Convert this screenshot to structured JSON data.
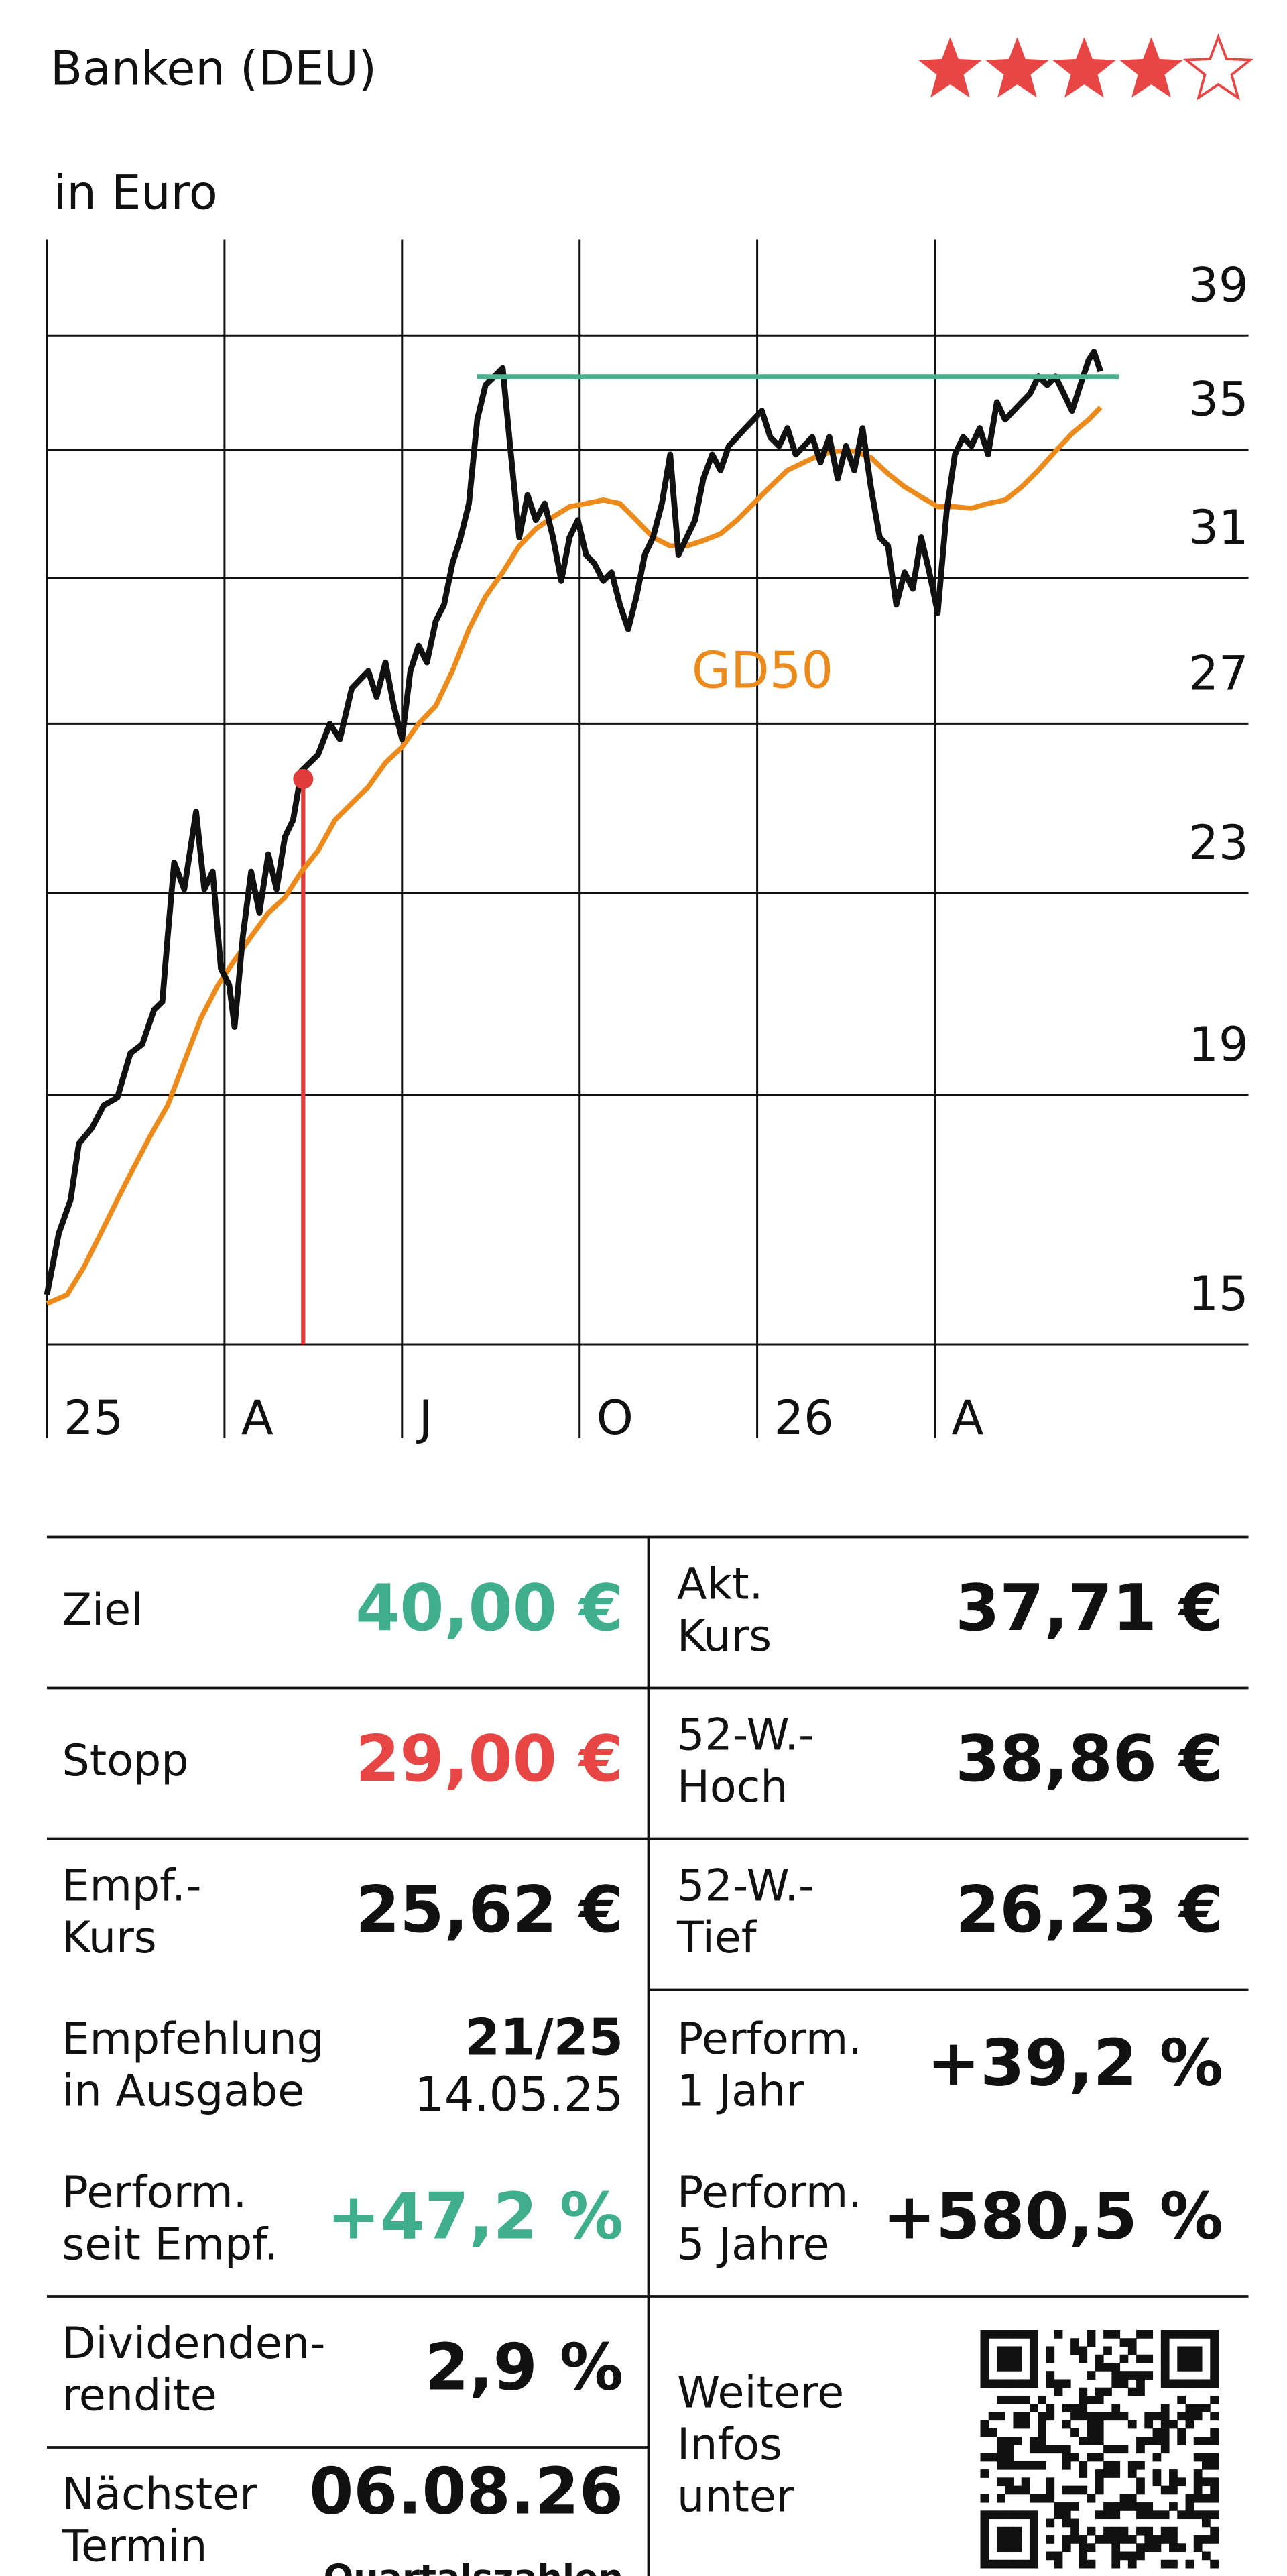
{
  "header": {
    "title": "Banken (DEU)",
    "rating": 4,
    "rating_max": 5,
    "rating_color": "#e84545"
  },
  "chart_data": {
    "type": "line",
    "subtitle": "in Euro",
    "y_scale": "log",
    "grid": true,
    "xlim": [
      0,
      20.3
    ],
    "xticks": [
      {
        "value": 0,
        "label": "25"
      },
      {
        "value": 3,
        "label": "A"
      },
      {
        "value": 6,
        "label": "J"
      },
      {
        "value": 9,
        "label": "O"
      },
      {
        "value": 12,
        "label": "26"
      },
      {
        "value": 15,
        "label": "A"
      }
    ],
    "ylim": [
      15,
      42.7
    ],
    "yticks": [
      15,
      19,
      23,
      27,
      31,
      35,
      39
    ],
    "series": [
      {
        "color": "#111111",
        "x": [
          0,
          0.2,
          0.4,
          0.54,
          0.76,
          0.96,
          1.19,
          1.41,
          1.61,
          1.81,
          1.95,
          2.04,
          2.15,
          2.32,
          2.52,
          2.66,
          2.8,
          2.94,
          3.08,
          3.17,
          3.31,
          3.45,
          3.59,
          3.74,
          3.88,
          4.02,
          4.16,
          4.3,
          4.44,
          4.58,
          4.78,
          4.95,
          5.15,
          5.29,
          5.43,
          5.57,
          5.72,
          5.86,
          6,
          6.14,
          6.28,
          6.42,
          6.57,
          6.71,
          6.85,
          6.99,
          7.13,
          7.27,
          7.41,
          7.56,
          7.7,
          7.84,
          7.98,
          8.12,
          8.26,
          8.41,
          8.55,
          8.69,
          8.83,
          8.97,
          9.11,
          9.25,
          9.4,
          9.54,
          9.68,
          9.82,
          9.96,
          10.1,
          10.24,
          10.39,
          10.53,
          10.67,
          10.81,
          10.95,
          11.09,
          11.24,
          11.38,
          11.52,
          11.66,
          11.8,
          11.94,
          12.08,
          12.22,
          12.37,
          12.51,
          12.65,
          12.79,
          12.93,
          13.07,
          13.22,
          13.36,
          13.5,
          13.64,
          13.78,
          13.92,
          14.07,
          14.21,
          14.35,
          14.49,
          14.63,
          14.77,
          14.91,
          15.05,
          15.2,
          15.34,
          15.48,
          15.62,
          15.76,
          15.9,
          16.05,
          16.19,
          16.33,
          16.47,
          16.61,
          16.75,
          16.9,
          17.04,
          17.18,
          17.32,
          17.46,
          17.6,
          17.69,
          17.8
        ],
        "values": [
          15.72,
          16.66,
          17.2,
          18.14,
          18.41,
          18.81,
          18.95,
          19.76,
          19.93,
          20.59,
          20.75,
          22.07,
          23.67,
          23.08,
          24.84,
          23.08,
          23.47,
          21.41,
          21.08,
          20.26,
          22.07,
          23.47,
          22.57,
          23.86,
          23.08,
          24.25,
          24.65,
          25.82,
          26.02,
          26.22,
          27,
          26.61,
          27.92,
          28.15,
          28.38,
          27.69,
          28.61,
          27.46,
          26.61,
          28.38,
          29.07,
          28.61,
          29.76,
          30.22,
          31.42,
          32.21,
          33.26,
          36.01,
          37.21,
          37.51,
          37.81,
          34.84,
          32.21,
          33.53,
          32.74,
          33.26,
          32.21,
          30.91,
          32.21,
          32.74,
          31.68,
          31.42,
          30.91,
          31.16,
          30.22,
          29.53,
          30.45,
          31.68,
          32.21,
          33.26,
          34.84,
          31.68,
          32.21,
          32.74,
          34.05,
          34.84,
          34.32,
          35.12,
          35.42,
          35.72,
          36.01,
          36.31,
          35.42,
          35.12,
          35.72,
          34.84,
          35.12,
          35.42,
          34.58,
          35.42,
          34.05,
          35.12,
          34.32,
          35.72,
          33.79,
          32.21,
          31.95,
          30.22,
          31.16,
          30.68,
          32.21,
          31.16,
          29.99,
          33,
          34.84,
          35.42,
          35.12,
          35.72,
          34.84,
          36.61,
          36.01,
          36.31,
          36.61,
          36.91,
          37.51,
          37.21,
          37.51,
          36.91,
          36.31,
          37.21,
          38.1,
          38.4,
          37.69
        ]
      },
      {
        "name": "GD50",
        "color": "#ec8a1c",
        "x": [
          0,
          0.34,
          0.62,
          0.91,
          1.19,
          1.47,
          1.75,
          2.04,
          2.32,
          2.6,
          2.89,
          3.17,
          3.45,
          3.74,
          4.02,
          4.3,
          4.58,
          4.87,
          5.15,
          5.43,
          5.72,
          6,
          6.28,
          6.57,
          6.85,
          7.13,
          7.41,
          7.7,
          7.98,
          8.26,
          8.55,
          8.83,
          9.11,
          9.4,
          9.68,
          9.96,
          10.24,
          10.53,
          10.81,
          11.09,
          11.38,
          11.66,
          11.94,
          12.22,
          12.51,
          12.79,
          13.07,
          13.36,
          13.64,
          13.92,
          14.21,
          14.49,
          14.77,
          15.05,
          15.34,
          15.62,
          15.9,
          16.19,
          16.47,
          16.75,
          17.04,
          17.32,
          17.6,
          17.8
        ],
        "values": [
          15.59,
          15.72,
          16.13,
          16.66,
          17.2,
          17.74,
          18.28,
          18.81,
          19.6,
          20.42,
          21.08,
          21.58,
          22.07,
          22.57,
          22.9,
          23.47,
          23.94,
          24.65,
          25.04,
          25.43,
          26.02,
          26.41,
          27,
          27.46,
          28.38,
          29.53,
          30.45,
          31.16,
          31.95,
          32.47,
          32.84,
          33.16,
          33.26,
          33.37,
          33.26,
          32.74,
          32.21,
          31.95,
          31.95,
          32.11,
          32.32,
          32.74,
          33.26,
          33.79,
          34.32,
          34.58,
          34.84,
          34.95,
          34.95,
          34.74,
          34.21,
          33.79,
          33.47,
          33.16,
          33.16,
          33.11,
          33.26,
          33.37,
          33.79,
          34.32,
          34.95,
          35.54,
          36.01,
          36.43
        ]
      }
    ],
    "reference_line": {
      "value": 37.5,
      "x": [
        7.27,
        18.11
      ],
      "color": "#4cb08e"
    },
    "marker": {
      "x": 4.33,
      "value": 25.62,
      "color": "#e03c3c"
    }
  },
  "table": {
    "left": [
      {
        "label": [
          "Ziel"
        ],
        "value": "40,00 €",
        "color": "#3fae8a"
      },
      {
        "label": [
          "Stopp"
        ],
        "value": "29,00 €",
        "color": "#e84545"
      },
      {
        "label": [
          "Empf.-",
          "Kurs"
        ],
        "value": "25,62 €"
      },
      {
        "label": [
          "Empfehlung",
          "in Ausgabe"
        ],
        "value": "21/25",
        "detail": "14.05.25"
      },
      {
        "label": [
          "Perform.",
          "seit Empf."
        ],
        "value": "+47,2 %",
        "color": "#3fae8a"
      },
      {
        "label": [
          "Dividenden-",
          "rendite"
        ],
        "value": "2,9 %"
      },
      {
        "label": [
          "Nächster",
          "Termin"
        ],
        "value": "06.08.26",
        "detail": "Quartalszahlen"
      }
    ],
    "right": [
      {
        "label": [
          "Akt.",
          "Kurs"
        ],
        "value": "37,71 €"
      },
      {
        "label": [
          "52-W.-",
          "Hoch"
        ],
        "value": "38,86 €"
      },
      {
        "label": [
          "52-W.-",
          "Tief"
        ],
        "value": "26,23 €"
      },
      {
        "label": [
          "Perform.",
          "1 Jahr"
        ],
        "value": "+39,2 %"
      },
      {
        "label": [
          "Perform.",
          "5 Jahre"
        ],
        "value": "+580,5 %"
      },
      {
        "label": [
          "Weitere",
          "Infos",
          "unter"
        ]
      }
    ]
  }
}
